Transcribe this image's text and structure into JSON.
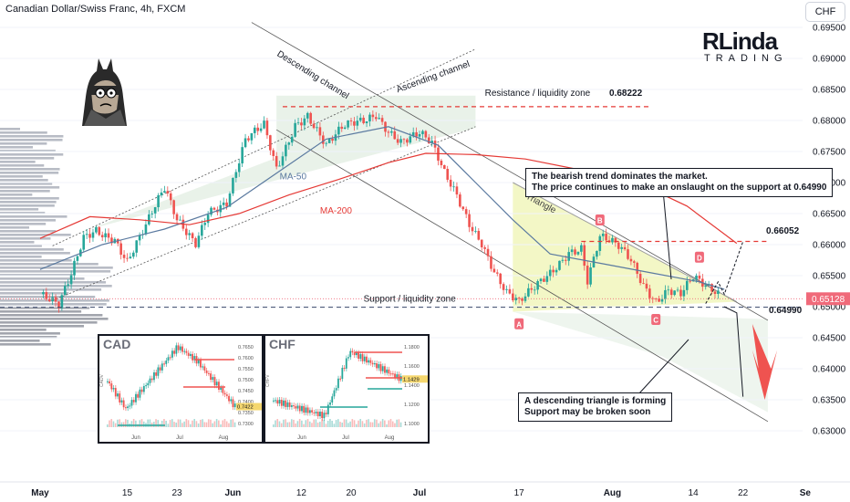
{
  "header": {
    "title": "Canadian Dollar/Swiss Franc, 4h, FXCM",
    "currency_badge": "CHF"
  },
  "brand": {
    "main": "RLinda",
    "sub": "TRADING"
  },
  "colors": {
    "bull": "#26a69a",
    "bear": "#ef5350",
    "ma50": "#5b7aa0",
    "ma200": "#e53935",
    "triangle_fill": "#f3f7c6",
    "channel_fill": "#e3efe3",
    "price_tag": "#f06a7a"
  },
  "notes": {
    "bearish": [
      "The bearish trend dominates the market.",
      "The price continues to make an onslaught on the support at 0.64990"
    ],
    "triangle": [
      "A descending triangle is forming",
      "Support may be broken soon"
    ]
  },
  "insets": [
    {
      "label": "CAD",
      "axis_title": "CADV",
      "y_ticks": [
        "0.7650",
        "0.7600",
        "0.7550",
        "0.7500",
        "0.7450",
        "0.7400",
        "0.7350",
        "0.7300"
      ],
      "x_ticks": [
        "Jun",
        "Jul",
        "Aug"
      ],
      "last_value": "0.7422"
    },
    {
      "label": "CHF",
      "axis_title": "CHFV",
      "y_ticks": [
        "1.1800",
        "1.1600",
        "1.1400",
        "1.1200",
        "1.1000"
      ],
      "x_ticks": [
        "Jun",
        "Jul",
        "Aug"
      ],
      "last_value": "1.1429"
    }
  ],
  "chart_data": {
    "type": "candlestick",
    "symbol": "Canadian Dollar/Swiss Franc",
    "timeframe": "4h",
    "y_axis": {
      "range": [
        0.6275,
        0.6975
      ],
      "ticks": [
        "0.69500",
        "0.69000",
        "0.68500",
        "0.68000",
        "0.67500",
        "0.67000",
        "0.66500",
        "0.66000",
        "0.65500",
        "0.65000",
        "0.64500",
        "0.64000",
        "0.63500",
        "0.63000"
      ]
    },
    "x_axis": {
      "ticks": [
        {
          "label": "May",
          "day": 0
        },
        {
          "label": "15",
          "day": 14
        },
        {
          "label": "23",
          "day": 22
        },
        {
          "label": "Jun",
          "day": 31
        },
        {
          "label": "12",
          "day": 42
        },
        {
          "label": "20",
          "day": 50
        },
        {
          "label": "Jul",
          "day": 61
        },
        {
          "label": "17",
          "day": 77
        },
        {
          "label": "Aug",
          "day": 92
        },
        {
          "label": "14",
          "day": 105
        },
        {
          "label": "22",
          "day": 113
        },
        {
          "label": "Se",
          "day": 123
        }
      ]
    },
    "last_price": "0.65128",
    "levels": [
      {
        "name": "resistance",
        "label": "Resistance / liquidity zone",
        "value_label": "0.68222",
        "value": 0.68222
      },
      {
        "name": "support",
        "label": "Support / liquidity zone",
        "value_label": "0.64990",
        "value": 0.6499
      },
      {
        "name": "breakout",
        "label": "",
        "value_label": "0.66052",
        "value": 0.66052
      }
    ],
    "annotations": [
      "Descending channel",
      "Ascending channel",
      "Triangle",
      "MA-50",
      "MA-200"
    ],
    "triangle_points": [
      {
        "label": "A",
        "day": 77,
        "price": 0.649
      },
      {
        "label": "B",
        "day": 90,
        "price": 0.6625
      },
      {
        "label": "C",
        "day": 99,
        "price": 0.6497
      },
      {
        "label": "D",
        "day": 106,
        "price": 0.6565
      }
    ],
    "path": [
      {
        "day": 0,
        "price": 0.652
      },
      {
        "day": 3,
        "price": 0.6495
      },
      {
        "day": 5,
        "price": 0.6545
      },
      {
        "day": 7,
        "price": 0.661
      },
      {
        "day": 9,
        "price": 0.6628
      },
      {
        "day": 12,
        "price": 0.6615
      },
      {
        "day": 14,
        "price": 0.6575
      },
      {
        "day": 17,
        "price": 0.6625
      },
      {
        "day": 20,
        "price": 0.6685
      },
      {
        "day": 22,
        "price": 0.664
      },
      {
        "day": 25,
        "price": 0.661
      },
      {
        "day": 27,
        "price": 0.666
      },
      {
        "day": 30,
        "price": 0.6665
      },
      {
        "day": 33,
        "price": 0.676
      },
      {
        "day": 36,
        "price": 0.679
      },
      {
        "day": 38,
        "price": 0.6725
      },
      {
        "day": 41,
        "price": 0.68
      },
      {
        "day": 43,
        "price": 0.6812
      },
      {
        "day": 46,
        "price": 0.6755
      },
      {
        "day": 49,
        "price": 0.6785
      },
      {
        "day": 52,
        "price": 0.68
      },
      {
        "day": 54,
        "price": 0.6815
      },
      {
        "day": 56,
        "price": 0.679
      },
      {
        "day": 58,
        "price": 0.677
      },
      {
        "day": 61,
        "price": 0.6775
      },
      {
        "day": 63,
        "price": 0.6755
      },
      {
        "day": 65,
        "price": 0.671
      },
      {
        "day": 67,
        "price": 0.668
      },
      {
        "day": 69,
        "price": 0.664
      },
      {
        "day": 71,
        "price": 0.661
      },
      {
        "day": 73,
        "price": 0.656
      },
      {
        "day": 75,
        "price": 0.652
      },
      {
        "day": 77,
        "price": 0.65
      },
      {
        "day": 79,
        "price": 0.652
      },
      {
        "day": 82,
        "price": 0.6555
      },
      {
        "day": 85,
        "price": 0.6595
      },
      {
        "day": 87,
        "price": 0.66
      },
      {
        "day": 88,
        "price": 0.6545
      },
      {
        "day": 90,
        "price": 0.661
      },
      {
        "day": 93,
        "price": 0.659
      },
      {
        "day": 95,
        "price": 0.657
      },
      {
        "day": 97,
        "price": 0.6535
      },
      {
        "day": 99,
        "price": 0.6515
      },
      {
        "day": 101,
        "price": 0.6535
      },
      {
        "day": 103,
        "price": 0.6525
      },
      {
        "day": 105,
        "price": 0.6545
      },
      {
        "day": 107,
        "price": 0.6525
      },
      {
        "day": 109,
        "price": 0.6513
      }
    ],
    "ma50": [
      {
        "day": 0,
        "price": 0.656
      },
      {
        "day": 10,
        "price": 0.66
      },
      {
        "day": 20,
        "price": 0.6625
      },
      {
        "day": 30,
        "price": 0.666
      },
      {
        "day": 38,
        "price": 0.6715
      },
      {
        "day": 46,
        "price": 0.677
      },
      {
        "day": 56,
        "price": 0.679
      },
      {
        "day": 64,
        "price": 0.676
      },
      {
        "day": 70,
        "price": 0.67
      },
      {
        "day": 76,
        "price": 0.664
      },
      {
        "day": 82,
        "price": 0.6585
      },
      {
        "day": 90,
        "price": 0.657
      },
      {
        "day": 98,
        "price": 0.6555
      },
      {
        "day": 106,
        "price": 0.654
      },
      {
        "day": 110,
        "price": 0.6528
      }
    ],
    "ma200": [
      {
        "day": 0,
        "price": 0.661
      },
      {
        "day": 8,
        "price": 0.6645
      },
      {
        "day": 16,
        "price": 0.664
      },
      {
        "day": 24,
        "price": 0.6632
      },
      {
        "day": 32,
        "price": 0.665
      },
      {
        "day": 40,
        "price": 0.668
      },
      {
        "day": 48,
        "price": 0.6705
      },
      {
        "day": 56,
        "price": 0.6732
      },
      {
        "day": 62,
        "price": 0.6747
      },
      {
        "day": 70,
        "price": 0.6745
      },
      {
        "day": 78,
        "price": 0.6738
      },
      {
        "day": 86,
        "price": 0.6722
      },
      {
        "day": 96,
        "price": 0.67
      },
      {
        "day": 104,
        "price": 0.6662
      },
      {
        "day": 112,
        "price": 0.6602
      }
    ]
  }
}
